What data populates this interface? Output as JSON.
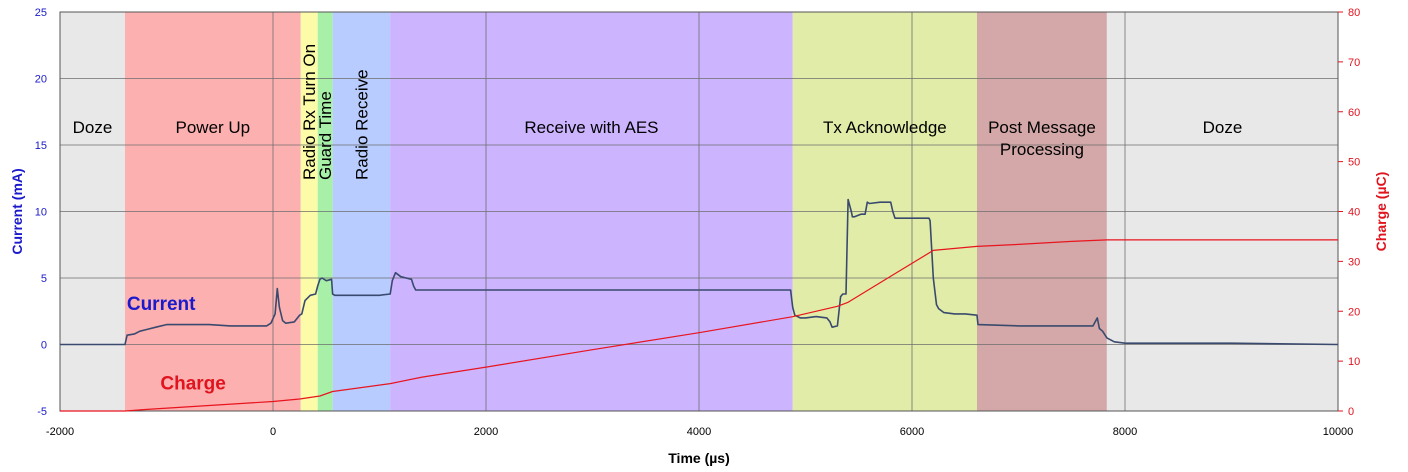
{
  "chart_data": {
    "type": "line",
    "xlabel": "Time (µs)",
    "ylabel_left": "Current (mA)",
    "ylabel_right": "Charge (µC)",
    "xlim": [
      -2000,
      10000
    ],
    "ylim_left": [
      -5,
      25
    ],
    "ylim_right": [
      0,
      80
    ],
    "x_ticks": [
      -2000,
      0,
      2000,
      4000,
      6000,
      8000,
      10000
    ],
    "y_left_ticks": [
      -5,
      0,
      5,
      10,
      15,
      20,
      25
    ],
    "y_right_ticks": [
      0,
      10,
      20,
      30,
      40,
      50,
      60,
      70,
      80
    ],
    "grid": true,
    "colors": {
      "current": "#3a4a6e",
      "charge": "#e8141e",
      "left_axis": "#1a1acc",
      "right_axis": "#e0141e"
    },
    "regions": [
      {
        "label": "Doze",
        "x0": -2000,
        "x1": -1390,
        "color": "#e8e8e8",
        "rotated": false
      },
      {
        "label": "Power Up",
        "x0": -1390,
        "x1": 260,
        "color": "#fdb0b0",
        "rotated": false
      },
      {
        "label": "Radio Rx Turn On",
        "x0": 260,
        "x1": 420,
        "color": "#fbfba8",
        "rotated": true
      },
      {
        "label": "Guard Time",
        "x0": 420,
        "x1": 560,
        "color": "#a8f0a8",
        "rotated": true
      },
      {
        "label": "Radio Receive",
        "x0": 560,
        "x1": 1100,
        "color": "#b8ccff",
        "rotated": true
      },
      {
        "label": "Receive with AES",
        "x0": 1100,
        "x1": 4880,
        "color": "#ccb4ff",
        "rotated": false
      },
      {
        "label": "Tx Acknowledge",
        "x0": 4880,
        "x1": 6610,
        "color": "#e0eca8",
        "rotated": false
      },
      {
        "label": "Post Message Processing",
        "lines": [
          "Post Message",
          "Processing"
        ],
        "x0": 6610,
        "x1": 7830,
        "color": "#d4a8a8",
        "rotated": false
      },
      {
        "label": "Doze",
        "x0": 7830,
        "x1": 10000,
        "color": "#e8e8e8",
        "rotated": false
      }
    ],
    "series": [
      {
        "name": "Current",
        "axis": "left",
        "x": [
          -2000,
          -1390,
          -1370,
          -1300,
          -1250,
          -1200,
          -1100,
          -1000,
          -800,
          -600,
          -400,
          -200,
          -60,
          -20,
          20,
          40,
          60,
          90,
          120,
          200,
          250,
          270,
          300,
          350,
          400,
          420,
          440,
          460,
          500,
          550,
          560,
          580,
          600,
          800,
          1000,
          1100,
          1120,
          1150,
          1200,
          1250,
          1300,
          1320,
          1340,
          1360,
          1400,
          2000,
          3000,
          4000,
          4860,
          4880,
          4900,
          4950,
          5000,
          5100,
          5200,
          5230,
          5250,
          5300,
          5330,
          5350,
          5380,
          5400,
          5430,
          5440,
          5460,
          5520,
          5560,
          5580,
          5600,
          5700,
          5800,
          5820,
          5840,
          5900,
          6000,
          6100,
          6160,
          6170,
          6200,
          6230,
          6250,
          6300,
          6400,
          6500,
          6610,
          6620,
          7000,
          7500,
          7700,
          7740,
          7760,
          7790,
          7830,
          7900,
          8000,
          9000,
          10000
        ],
        "values": [
          0,
          0,
          0.7,
          0.8,
          1.0,
          1.1,
          1.3,
          1.5,
          1.5,
          1.5,
          1.4,
          1.4,
          1.4,
          1.6,
          2.3,
          4.2,
          2.8,
          1.8,
          1.6,
          1.7,
          2.2,
          2.3,
          3.3,
          3.7,
          3.8,
          4.4,
          4.9,
          5.0,
          4.8,
          4.9,
          3.8,
          3.7,
          3.7,
          3.7,
          3.7,
          3.8,
          4.8,
          5.4,
          5.1,
          5.0,
          4.9,
          4.4,
          4.1,
          4.1,
          4.1,
          4.1,
          4.1,
          4.1,
          4.1,
          2.8,
          2.2,
          2.0,
          2.0,
          2.1,
          2.0,
          1.7,
          1.3,
          1.4,
          3.6,
          3.8,
          3.8,
          10.9,
          10.0,
          9.6,
          9.6,
          9.8,
          9.8,
          10.7,
          10.6,
          10.7,
          10.7,
          10.0,
          9.5,
          9.5,
          9.5,
          9.5,
          9.5,
          9.3,
          5.0,
          3.0,
          2.7,
          2.4,
          2.3,
          2.3,
          2.2,
          1.5,
          1.4,
          1.4,
          1.4,
          2.0,
          1.2,
          1.0,
          0.5,
          0.2,
          0.1,
          0.1,
          0.0
        ]
      },
      {
        "name": "Charge",
        "axis": "right",
        "x": [
          -2000,
          -1390,
          -1200,
          0,
          250,
          440,
          560,
          1100,
          1400,
          2000,
          3000,
          4000,
          4880,
          5300,
          5400,
          5800,
          6200,
          6610,
          7000,
          7500,
          7830,
          8000,
          9000,
          10000
        ],
        "values": [
          0,
          0,
          0.3,
          1.9,
          2.4,
          3.0,
          3.9,
          5.5,
          6.8,
          8.8,
          12.3,
          15.7,
          18.9,
          21.0,
          21.8,
          27.0,
          32.2,
          33.0,
          33.4,
          34.0,
          34.3,
          34.3,
          34.3,
          34.3
        ]
      }
    ],
    "annotations": [
      {
        "text": "Current",
        "x": -1050,
        "y": 2.6,
        "axis": "left",
        "color": "#1a1acc"
      },
      {
        "text": "Charge",
        "x": -750,
        "y": -3.4,
        "axis": "left",
        "color": "#e0141e"
      }
    ]
  }
}
